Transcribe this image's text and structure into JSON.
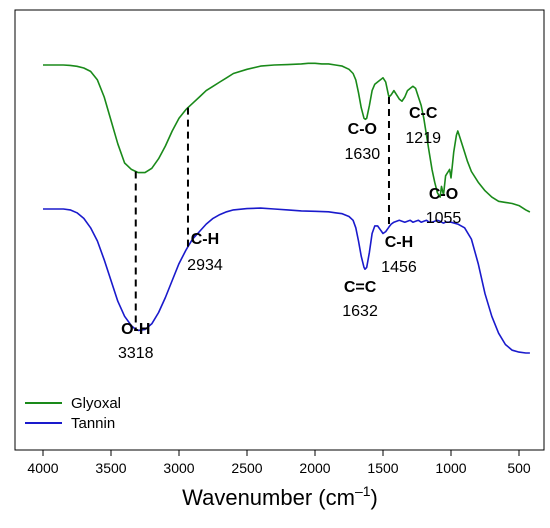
{
  "chart_data": {
    "type": "line",
    "title": "",
    "xlabel": {
      "main": "Wavenumber (cm",
      "sup": "–1",
      "tail": ")"
    },
    "ylabel": "",
    "xlim": [
      4100,
      350
    ],
    "x_reversed": true,
    "x_ticks": [
      4000,
      3500,
      3000,
      2500,
      2000,
      1500,
      1000,
      500
    ],
    "grid": false,
    "legend_position": "bottom-left",
    "series": [
      {
        "name": "Glyoxal",
        "color": "#1a8a1a",
        "x": [
          4000,
          3850,
          3800,
          3750,
          3700,
          3650,
          3600,
          3550,
          3500,
          3450,
          3400,
          3350,
          3318,
          3300,
          3250,
          3200,
          3150,
          3100,
          3050,
          3000,
          2950,
          2934,
          2900,
          2850,
          2800,
          2750,
          2700,
          2650,
          2600,
          2500,
          2400,
          2300,
          2200,
          2100,
          2050,
          2000,
          1950,
          1900,
          1850,
          1800,
          1750,
          1720,
          1700,
          1680,
          1660,
          1640,
          1630,
          1620,
          1600,
          1580,
          1560,
          1540,
          1520,
          1500,
          1480,
          1460,
          1456,
          1440,
          1420,
          1400,
          1380,
          1360,
          1340,
          1320,
          1300,
          1280,
          1260,
          1240,
          1219,
          1200,
          1180,
          1160,
          1140,
          1120,
          1100,
          1080,
          1070,
          1055,
          1040,
          1030,
          1020,
          1010,
          1000,
          990,
          980,
          960,
          950,
          940,
          920,
          900,
          880,
          850,
          800,
          750,
          700,
          650,
          600,
          550,
          500,
          450,
          420
        ],
        "y": [
          0.95,
          0.95,
          0.948,
          0.944,
          0.936,
          0.92,
          0.88,
          0.8,
          0.69,
          0.58,
          0.49,
          0.46,
          0.45,
          0.445,
          0.445,
          0.465,
          0.51,
          0.57,
          0.64,
          0.7,
          0.74,
          0.75,
          0.77,
          0.8,
          0.83,
          0.85,
          0.87,
          0.89,
          0.91,
          0.93,
          0.945,
          0.95,
          0.952,
          0.955,
          0.958,
          0.958,
          0.955,
          0.955,
          0.95,
          0.945,
          0.93,
          0.91,
          0.88,
          0.82,
          0.75,
          0.7,
          0.695,
          0.7,
          0.76,
          0.83,
          0.86,
          0.87,
          0.88,
          0.89,
          0.87,
          0.81,
          0.8,
          0.81,
          0.83,
          0.81,
          0.79,
          0.78,
          0.8,
          0.83,
          0.84,
          0.85,
          0.84,
          0.8,
          0.76,
          0.7,
          0.62,
          0.54,
          0.46,
          0.4,
          0.35,
          0.33,
          0.38,
          0.34,
          0.43,
          0.44,
          0.45,
          0.46,
          0.42,
          0.48,
          0.54,
          0.62,
          0.64,
          0.62,
          0.58,
          0.54,
          0.5,
          0.45,
          0.4,
          0.36,
          0.33,
          0.31,
          0.305,
          0.3,
          0.29,
          0.27,
          0.26
        ]
      },
      {
        "name": "Tannin",
        "color": "#1a1acc",
        "x": [
          4000,
          3850,
          3800,
          3750,
          3700,
          3650,
          3600,
          3550,
          3500,
          3450,
          3400,
          3350,
          3318,
          3300,
          3250,
          3200,
          3150,
          3100,
          3050,
          3000,
          2950,
          2934,
          2900,
          2850,
          2800,
          2750,
          2700,
          2650,
          2600,
          2500,
          2400,
          2300,
          2200,
          2100,
          2000,
          1900,
          1850,
          1800,
          1750,
          1720,
          1700,
          1680,
          1660,
          1640,
          1632,
          1620,
          1600,
          1580,
          1560,
          1540,
          1520,
          1500,
          1480,
          1460,
          1456,
          1440,
          1420,
          1400,
          1380,
          1360,
          1340,
          1320,
          1300,
          1280,
          1260,
          1240,
          1219,
          1200,
          1180,
          1160,
          1140,
          1120,
          1100,
          1080,
          1070,
          1055,
          1040,
          1000,
          950,
          900,
          850,
          800,
          750,
          700,
          650,
          600,
          550,
          500,
          450,
          420
        ],
        "y": [
          0.95,
          0.95,
          0.945,
          0.93,
          0.9,
          0.85,
          0.78,
          0.68,
          0.57,
          0.46,
          0.38,
          0.33,
          0.31,
          0.305,
          0.31,
          0.34,
          0.4,
          0.48,
          0.57,
          0.66,
          0.73,
          0.75,
          0.79,
          0.83,
          0.87,
          0.9,
          0.92,
          0.935,
          0.945,
          0.952,
          0.955,
          0.95,
          0.945,
          0.94,
          0.938,
          0.935,
          0.93,
          0.925,
          0.91,
          0.89,
          0.85,
          0.78,
          0.7,
          0.64,
          0.63,
          0.64,
          0.72,
          0.82,
          0.86,
          0.86,
          0.84,
          0.82,
          0.83,
          0.85,
          0.855,
          0.87,
          0.88,
          0.885,
          0.89,
          0.885,
          0.88,
          0.885,
          0.89,
          0.88,
          0.885,
          0.89,
          0.88,
          0.885,
          0.89,
          0.88,
          0.88,
          0.885,
          0.89,
          0.885,
          0.88,
          0.875,
          0.88,
          0.88,
          0.87,
          0.85,
          0.79,
          0.66,
          0.5,
          0.38,
          0.29,
          0.23,
          0.2,
          0.19,
          0.185,
          0.185
        ]
      }
    ],
    "annotations": [
      {
        "group": "O-H",
        "number": "3318",
        "target": 3318,
        "series": "Tannin"
      },
      {
        "group": "C-H",
        "number": "2934",
        "target": 2934,
        "series": "Tannin"
      },
      {
        "group": "C=C",
        "number": "1632",
        "target": 1632,
        "series": "Tannin"
      },
      {
        "group": "C-H",
        "number": "1456",
        "target": 1456,
        "series": "Tannin"
      },
      {
        "group": "C-O",
        "number": "1630",
        "target": 1630,
        "series": "Glyoxal"
      },
      {
        "group": "C-C",
        "number": "1219",
        "target": 1219,
        "series": "Glyoxal"
      },
      {
        "group": "C-O",
        "number": "1055",
        "target": 1055,
        "series": "Glyoxal"
      }
    ],
    "dashed_connectors": [
      3318,
      2934,
      1456
    ]
  }
}
